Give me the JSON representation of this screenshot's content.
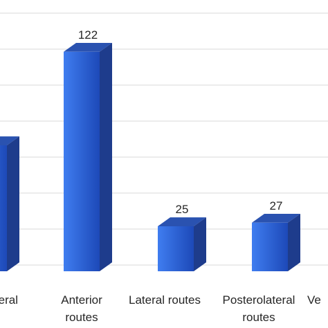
{
  "chart_data": {
    "type": "bar",
    "title": "",
    "xlabel": "",
    "ylabel": "",
    "ylim": [
      0,
      140
    ],
    "grid": true,
    "legend": "none",
    "bar_style": "3d",
    "categories": [
      [
        "eral"
      ],
      [
        "Anterior",
        "routes"
      ],
      [
        "Lateral routes"
      ],
      [
        "Posterolateral",
        "routes"
      ],
      [
        "Ve"
      ]
    ],
    "values": [
      null,
      122,
      25,
      27,
      null
    ],
    "data_labels": [
      "",
      "122",
      "25",
      "27",
      ""
    ],
    "colors": {
      "bar_front_light": "#3f7df0",
      "bar_front_dark": "#1d49b8",
      "bar_side": "#1e3c8c",
      "bar_top": "#2a52b0",
      "grid": "#d9d9d9",
      "text": "#262626"
    }
  }
}
